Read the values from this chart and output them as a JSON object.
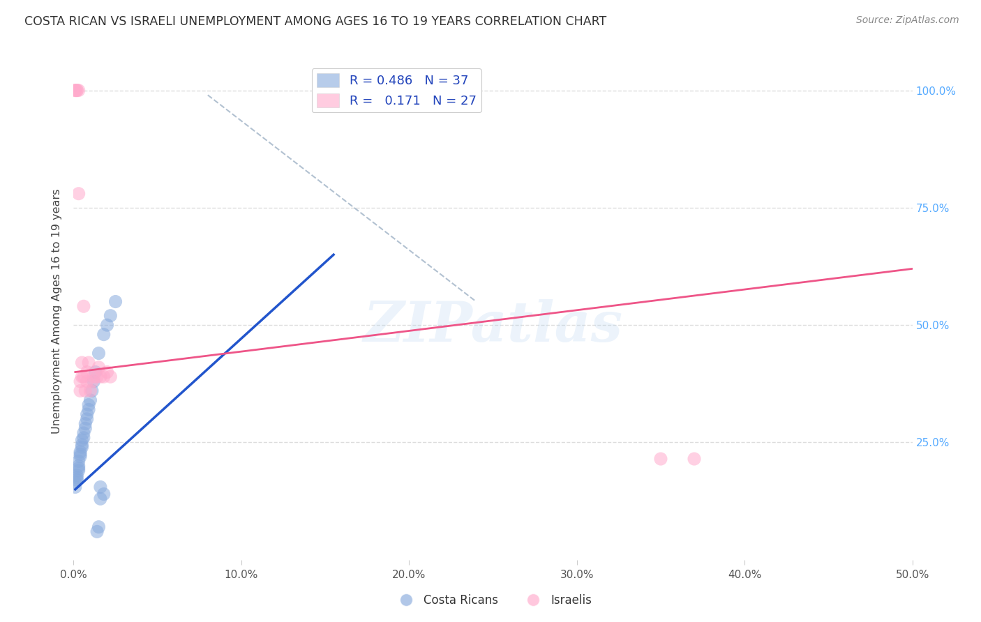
{
  "title": "COSTA RICAN VS ISRAELI UNEMPLOYMENT AMONG AGES 16 TO 19 YEARS CORRELATION CHART",
  "source": "Source: ZipAtlas.com",
  "ylabel": "Unemployment Among Ages 16 to 19 years",
  "xlim": [
    0.0,
    0.5
  ],
  "ylim": [
    0.0,
    1.06
  ],
  "xtick_vals": [
    0.0,
    0.1,
    0.2,
    0.3,
    0.4,
    0.5
  ],
  "xtick_labels": [
    "0.0%",
    "10.0%",
    "20.0%",
    "30.0%",
    "40.0%",
    "50.0%"
  ],
  "ytick_vals": [
    0.25,
    0.5,
    0.75,
    1.0
  ],
  "right_ytick_labels": [
    "25.0%",
    "50.0%",
    "75.0%",
    "100.0%"
  ],
  "blue_color": "#88AADD",
  "pink_color": "#FFAACC",
  "blue_line_color": "#2255CC",
  "pink_line_color": "#EE5588",
  "dashed_line_color": "#AABBCC",
  "watermark": "ZIPatlas",
  "bg_color": "#FFFFFF",
  "grid_color": "#DDDDDD",
  "legend_R_blue": "0.486",
  "legend_N_blue": "37",
  "legend_R_pink": "0.171",
  "legend_N_pink": "27",
  "costa_rican_x": [
    0.001,
    0.001,
    0.002,
    0.002,
    0.002,
    0.003,
    0.003,
    0.003,
    0.003,
    0.004,
    0.004,
    0.004,
    0.005,
    0.005,
    0.005,
    0.006,
    0.006,
    0.007,
    0.007,
    0.008,
    0.008,
    0.009,
    0.009,
    0.01,
    0.011,
    0.012,
    0.013,
    0.015,
    0.018,
    0.02,
    0.022,
    0.025,
    0.016,
    0.014,
    0.015,
    0.016,
    0.018
  ],
  "costa_rican_y": [
    0.155,
    0.165,
    0.17,
    0.175,
    0.18,
    0.19,
    0.195,
    0.2,
    0.21,
    0.22,
    0.225,
    0.23,
    0.24,
    0.245,
    0.255,
    0.26,
    0.27,
    0.28,
    0.29,
    0.3,
    0.31,
    0.32,
    0.33,
    0.34,
    0.36,
    0.38,
    0.4,
    0.44,
    0.48,
    0.5,
    0.52,
    0.55,
    0.155,
    0.06,
    0.07,
    0.13,
    0.14
  ],
  "israeli_x": [
    0.001,
    0.001,
    0.002,
    0.002,
    0.003,
    0.003,
    0.004,
    0.004,
    0.005,
    0.005,
    0.006,
    0.006,
    0.007,
    0.008,
    0.008,
    0.009,
    0.01,
    0.011,
    0.012,
    0.014,
    0.015,
    0.016,
    0.018,
    0.02,
    0.022,
    0.35,
    0.37
  ],
  "israeli_y": [
    1.0,
    1.0,
    1.0,
    1.0,
    1.0,
    0.78,
    0.38,
    0.36,
    0.39,
    0.42,
    0.39,
    0.54,
    0.36,
    0.38,
    0.4,
    0.42,
    0.36,
    0.38,
    0.39,
    0.39,
    0.41,
    0.39,
    0.39,
    0.4,
    0.39,
    0.215,
    0.215
  ],
  "blue_line_x": [
    0.001,
    0.155
  ],
  "blue_line_y": [
    0.15,
    0.65
  ],
  "pink_line_x": [
    0.001,
    0.5
  ],
  "pink_line_y": [
    0.4,
    0.62
  ],
  "dash_line_x": [
    0.08,
    0.24
  ],
  "dash_line_y": [
    0.99,
    0.55
  ]
}
